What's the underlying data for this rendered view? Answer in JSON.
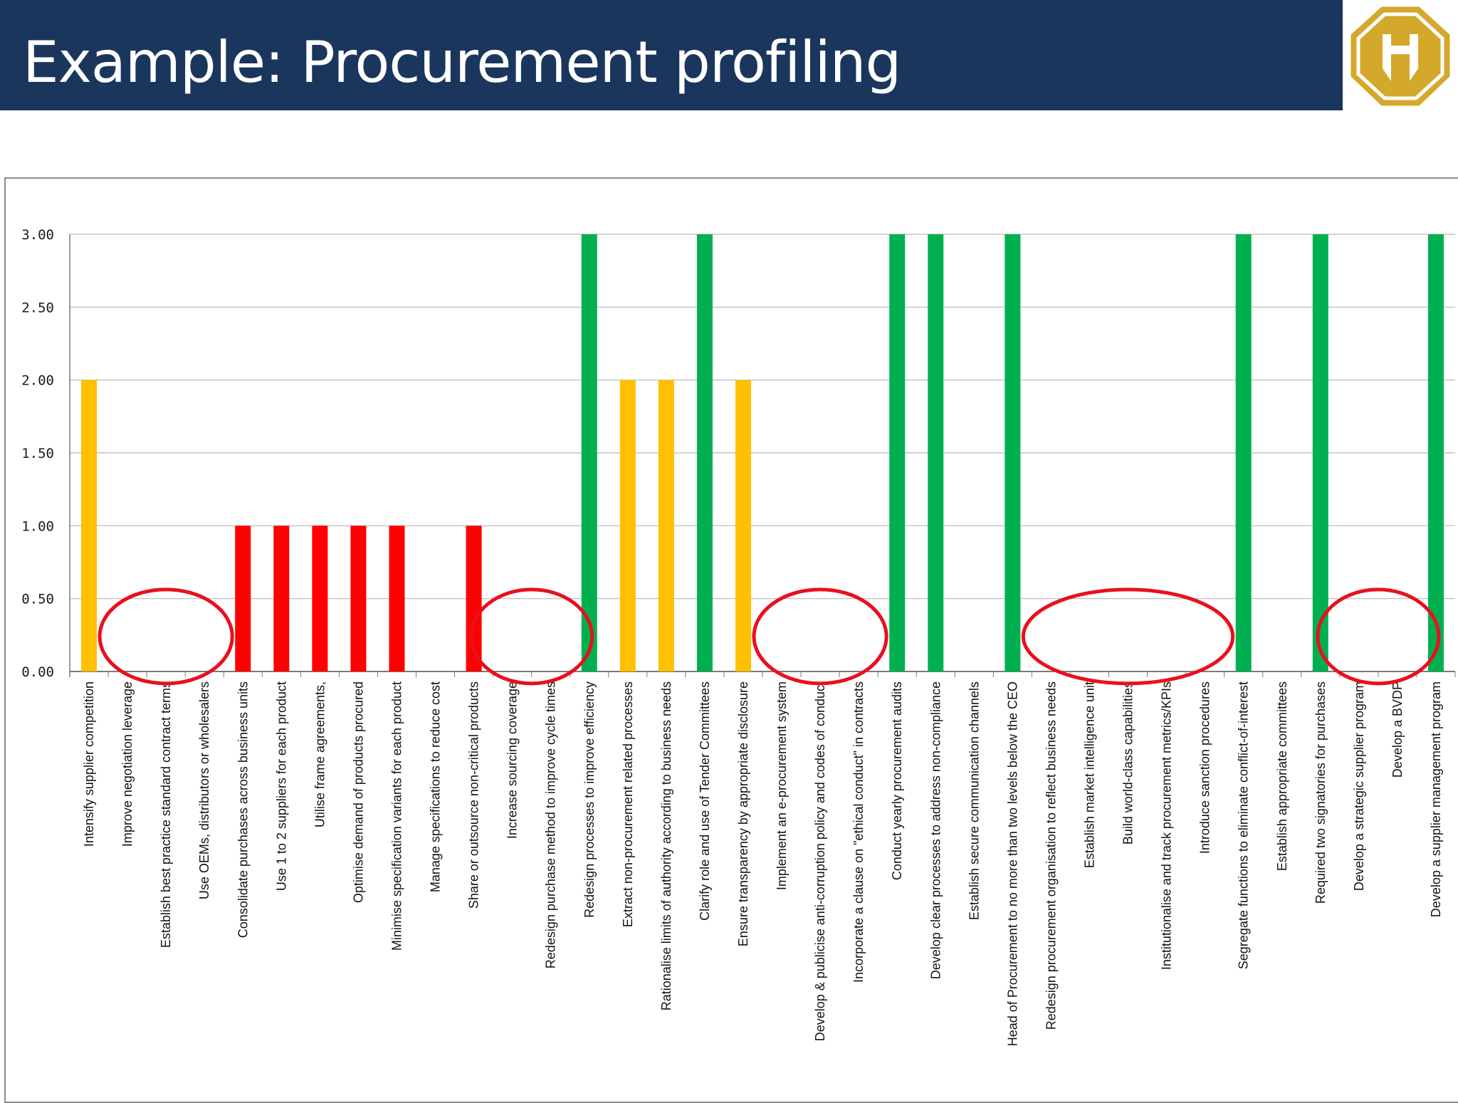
{
  "header": {
    "title": "Example: Procurement profiling"
  },
  "colors": {
    "header_bg": "#1b365d",
    "logo": "#d4a82a",
    "bar_red": "#ff0000",
    "bar_amber": "#ffc000",
    "bar_green": "#00b050",
    "highlight_circle": "#e8101e"
  },
  "chart_data": {
    "type": "bar",
    "title": "",
    "xlabel": "",
    "ylabel": "",
    "ylim": [
      0,
      3
    ],
    "yticks": [
      "0.00",
      "0.50",
      "1.00",
      "1.50",
      "2.00",
      "2.50",
      "3.00"
    ],
    "grid": true,
    "legend": "none",
    "categories": [
      "Intensify supplier competition",
      "Improve negotiation leverage",
      "Establish best practice standard contract terms",
      "Use OEMs, distributors or wholesalers",
      "Consolidate purchases across business units",
      "Use 1 to 2 suppliers for each product",
      "Utilise frame agreements,",
      "Optimise demand of products procured",
      "Minimise specification variants for each product",
      "Manage specifications to reduce cost",
      "Share or outsource non-critical products",
      "Increase sourcing coverage",
      "Redesign purchase method  to improve cycle times",
      "Redesign processes to improve efficiency",
      "Extract non-procurement related processes",
      "Rationalise limits of authority according to business needs",
      "Clarify role and use of Tender Committees",
      "Ensure transparency by appropriate disclosure",
      "Implement an e-procurement system",
      "Develop & publicise anti-corruption policy and codes of conduct",
      "Incorporate a clause on \"ethical conduct\" in contracts",
      "Conduct yearly procurement audits",
      "Develop clear processes to address non-compliance",
      "Establish secure communication channels",
      "Head of Procurement to no more than two levels below the CEO",
      "Redesign procurement organisation to reflect business needs",
      "Establish market intelligence unit",
      "Build world-class capabilities",
      "Institutionalise and track procurement metrics/KPIs",
      "Introduce sanction procedures",
      "Segregate functions to eliminate conflict-of-interest",
      "Establish appropriate committees",
      "Required two signatories for purchases",
      "Develop a strategic supplier program",
      "Develop a BVDP",
      "Develop a supplier management program"
    ],
    "values": [
      2,
      0,
      0,
      0,
      1,
      1,
      1,
      1,
      1,
      0,
      1,
      0,
      0,
      3,
      2,
      2,
      3,
      2,
      0,
      0,
      0,
      3,
      3,
      0,
      3,
      0,
      0,
      0,
      0,
      0,
      3,
      0,
      3,
      0,
      0,
      3
    ],
    "bar_colors": [
      "amber",
      "",
      "",
      "",
      "red",
      "red",
      "red",
      "red",
      "red",
      "",
      "red",
      "",
      "",
      "green",
      "amber",
      "amber",
      "green",
      "amber",
      "",
      "",
      "",
      "green",
      "green",
      "",
      "green",
      "",
      "",
      "",
      "",
      "",
      "green",
      "",
      "green",
      "",
      "",
      "green"
    ],
    "highlighted_categories": [
      [
        1,
        2,
        3
      ],
      [
        11,
        12
      ],
      [
        18,
        19,
        20
      ],
      [
        25,
        26,
        27,
        28,
        29
      ],
      [
        33,
        34
      ]
    ]
  }
}
